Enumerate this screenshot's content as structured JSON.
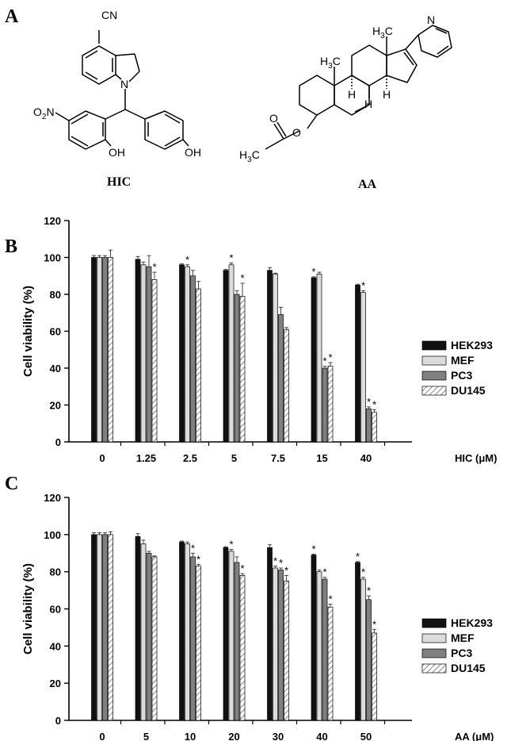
{
  "panels": {
    "a": "A",
    "b": "B",
    "c": "C"
  },
  "structures": {
    "hic_label": "HIC",
    "aa_label": "AA",
    "atoms": {
      "cn": "CN",
      "n": "N",
      "o2n_o": "O",
      "o2n_2": "2",
      "o2n_n": "N",
      "oh1": "OH",
      "oh2": "OH",
      "pyridine_n": "N",
      "h3c_h": "H",
      "h3c_3": "3",
      "h3c_c": "C",
      "me1_h": "H",
      "me1_3": "3",
      "me1_c": "C",
      "me2_h": "H",
      "me2_3": "3",
      "me2_c": "C",
      "h_a": "H",
      "h_b": "H",
      "h_c": "H",
      "o_carbonyl": "O",
      "o_ester": "O"
    }
  },
  "legend_labels": [
    "HEK293",
    "MEF",
    "PC3",
    "DU145"
  ],
  "chart_data": [
    {
      "type": "bar",
      "panel": "B",
      "ylabel": "Cell viability (%)",
      "xlabel": "HIC (μM)",
      "ylim": [
        0,
        120
      ],
      "yticks": [
        0,
        20,
        40,
        60,
        80,
        100,
        120
      ],
      "categories": [
        "0",
        "1.25",
        "2.5",
        "5",
        "7.5",
        "15",
        "40"
      ],
      "series": [
        {
          "name": "HEK293",
          "values": [
            100,
            99,
            96,
            93,
            93,
            89,
            85
          ],
          "errors": [
            1,
            1.5,
            0.5,
            0.5,
            1.5,
            0.5,
            0.5
          ],
          "sig": [
            false,
            false,
            false,
            false,
            false,
            true,
            false
          ]
        },
        {
          "name": "MEF",
          "values": [
            100,
            96,
            95,
            96,
            91,
            91,
            81
          ],
          "errors": [
            1,
            1.5,
            1,
            1,
            0.5,
            1,
            1
          ],
          "sig": [
            false,
            false,
            true,
            true,
            false,
            false,
            true
          ]
        },
        {
          "name": "PC3",
          "values": [
            100,
            95,
            90,
            80,
            69,
            40,
            18
          ],
          "errors": [
            1,
            6,
            3,
            2,
            4,
            1,
            1
          ],
          "sig": [
            false,
            false,
            false,
            false,
            false,
            true,
            true
          ]
        },
        {
          "name": "DU145",
          "values": [
            100,
            88,
            83,
            79,
            61,
            41,
            16
          ],
          "errors": [
            4,
            4,
            4,
            7,
            1,
            2,
            1.5
          ],
          "sig": [
            false,
            true,
            false,
            true,
            false,
            true,
            true
          ]
        }
      ],
      "legend_position": "right"
    },
    {
      "type": "bar",
      "panel": "C",
      "ylabel": "Cell viability (%)",
      "xlabel": "AA (μM)",
      "ylim": [
        0,
        120
      ],
      "yticks": [
        0,
        20,
        40,
        60,
        80,
        100,
        120
      ],
      "categories": [
        "0",
        "5",
        "10",
        "20",
        "30",
        "40",
        "50"
      ],
      "series": [
        {
          "name": "HEK293",
          "values": [
            100,
            99,
            96,
            93,
            93,
            89,
            85
          ],
          "errors": [
            1,
            1.5,
            0.5,
            0.5,
            1.5,
            0.5,
            0.5
          ],
          "sig": [
            false,
            false,
            false,
            false,
            false,
            true,
            true
          ]
        },
        {
          "name": "MEF",
          "values": [
            100,
            95,
            95,
            91,
            82,
            80,
            76
          ],
          "errors": [
            1,
            2,
            1,
            1,
            1,
            1,
            1
          ],
          "sig": [
            false,
            false,
            false,
            true,
            true,
            false,
            true
          ]
        },
        {
          "name": "PC3",
          "values": [
            100,
            90,
            88,
            85,
            81,
            76,
            65
          ],
          "errors": [
            1,
            1,
            2,
            3,
            1,
            1,
            2
          ],
          "sig": [
            false,
            false,
            true,
            false,
            true,
            true,
            true
          ]
        },
        {
          "name": "DU145",
          "values": [
            100,
            88,
            83,
            78,
            75,
            61,
            47
          ],
          "errors": [
            1.5,
            0.5,
            1,
            1,
            3,
            1.5,
            2
          ],
          "sig": [
            false,
            false,
            true,
            true,
            true,
            true,
            true
          ]
        }
      ],
      "legend_position": "right"
    }
  ]
}
